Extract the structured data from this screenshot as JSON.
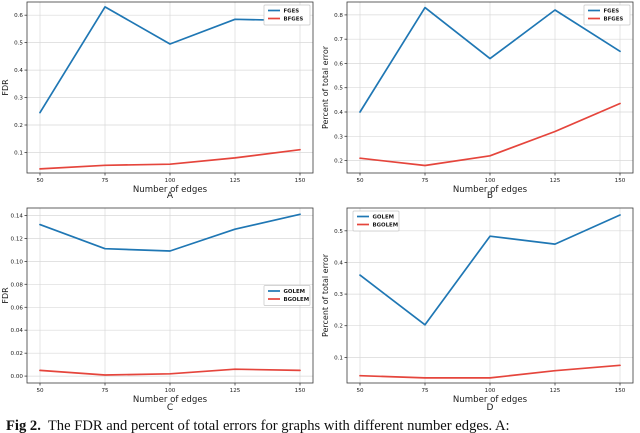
{
  "caption": {
    "prefix": "Fig 2.",
    "text": "The FDR and percent of total errors for graphs with different number edges.  A:"
  },
  "style": {
    "blue": "#1f77b4",
    "red": "#e5453c",
    "grid_color": "#d9d9d9",
    "spine_color": "#3a3a3a",
    "legend_border": "#c6c6c6",
    "text_color": "#1a1a1a"
  },
  "chart_data": [
    {
      "label": "A",
      "type": "line",
      "xlabel": "Number of edges",
      "ylabel": "FDR",
      "x": [
        50,
        75,
        100,
        125,
        150
      ],
      "xtick_labels": [
        "50",
        "75",
        "100",
        "125",
        "150"
      ],
      "xlim": [
        45,
        155
      ],
      "yticks": [
        0.1,
        0.2,
        0.3,
        0.4,
        0.5,
        0.6
      ],
      "ytick_labels": [
        "0.1",
        "0.2",
        "0.3",
        "0.4",
        "0.5",
        "0.6"
      ],
      "ylim": [
        0.025,
        0.648
      ],
      "grid": true,
      "legend_pos": "top-right",
      "series": [
        {
          "name": "FGES",
          "color": "#1f77b4",
          "values": [
            0.245,
            0.63,
            0.495,
            0.585,
            0.58
          ]
        },
        {
          "name": "BFGES",
          "color": "#e5453c",
          "values": [
            0.04,
            0.053,
            0.057,
            0.08,
            0.11
          ]
        }
      ]
    },
    {
      "label": "B",
      "type": "line",
      "xlabel": "Number of edges",
      "ylabel": "Percent of total error",
      "x": [
        50,
        75,
        100,
        125,
        150
      ],
      "xtick_labels": [
        "50",
        "75",
        "100",
        "125",
        "150"
      ],
      "xlim": [
        45,
        155
      ],
      "yticks": [
        0.2,
        0.3,
        0.4,
        0.5,
        0.6,
        0.7,
        0.8
      ],
      "ytick_labels": [
        "0.2",
        "0.3",
        "0.4",
        "0.5",
        "0.6",
        "0.7",
        "0.8"
      ],
      "ylim": [
        0.149,
        0.853
      ],
      "grid": true,
      "legend_pos": "top-right",
      "series": [
        {
          "name": "FGES",
          "color": "#1f77b4",
          "values": [
            0.4,
            0.83,
            0.62,
            0.82,
            0.65
          ]
        },
        {
          "name": "BFGES",
          "color": "#e5453c",
          "values": [
            0.21,
            0.18,
            0.22,
            0.32,
            0.435
          ]
        }
      ]
    },
    {
      "label": "C",
      "type": "line",
      "xlabel": "Number of edges",
      "ylabel": "FDR",
      "x": [
        50,
        75,
        100,
        125,
        150
      ],
      "xtick_labels": [
        "50",
        "75",
        "100",
        "125",
        "150"
      ],
      "xlim": [
        45,
        155
      ],
      "yticks": [
        0.0,
        0.02,
        0.04,
        0.06,
        0.08,
        0.1,
        0.12,
        0.14
      ],
      "ytick_labels": [
        "0.00",
        "0.02",
        "0.04",
        "0.06",
        "0.08",
        "0.10",
        "0.12",
        "0.14"
      ],
      "ylim": [
        -0.006,
        0.1465
      ],
      "grid": true,
      "legend_pos": "center-right",
      "series": [
        {
          "name": "GOLEM",
          "color": "#1f77b4",
          "values": [
            0.132,
            0.111,
            0.109,
            0.128,
            0.141
          ]
        },
        {
          "name": "BGOLEM",
          "color": "#e5453c",
          "values": [
            0.005,
            0.001,
            0.002,
            0.006,
            0.005
          ]
        }
      ]
    },
    {
      "label": "D",
      "type": "line",
      "xlabel": "Number of edges",
      "ylabel": "Percent of total error",
      "x": [
        50,
        75,
        100,
        125,
        150
      ],
      "xtick_labels": [
        "50",
        "75",
        "100",
        "125",
        "150"
      ],
      "xlim": [
        45,
        155
      ],
      "yticks": [
        0.1,
        0.2,
        0.3,
        0.4,
        0.5
      ],
      "ytick_labels": [
        "0.1",
        "0.2",
        "0.3",
        "0.4",
        "0.5"
      ],
      "ylim": [
        0.019,
        0.572
      ],
      "grid": true,
      "legend_pos": "top-left",
      "series": [
        {
          "name": "GOLEM",
          "color": "#1f77b4",
          "values": [
            0.36,
            0.203,
            0.483,
            0.458,
            0.55
          ]
        },
        {
          "name": "BGOLEM",
          "color": "#e5453c",
          "values": [
            0.042,
            0.035,
            0.035,
            0.058,
            0.075
          ]
        }
      ]
    }
  ]
}
